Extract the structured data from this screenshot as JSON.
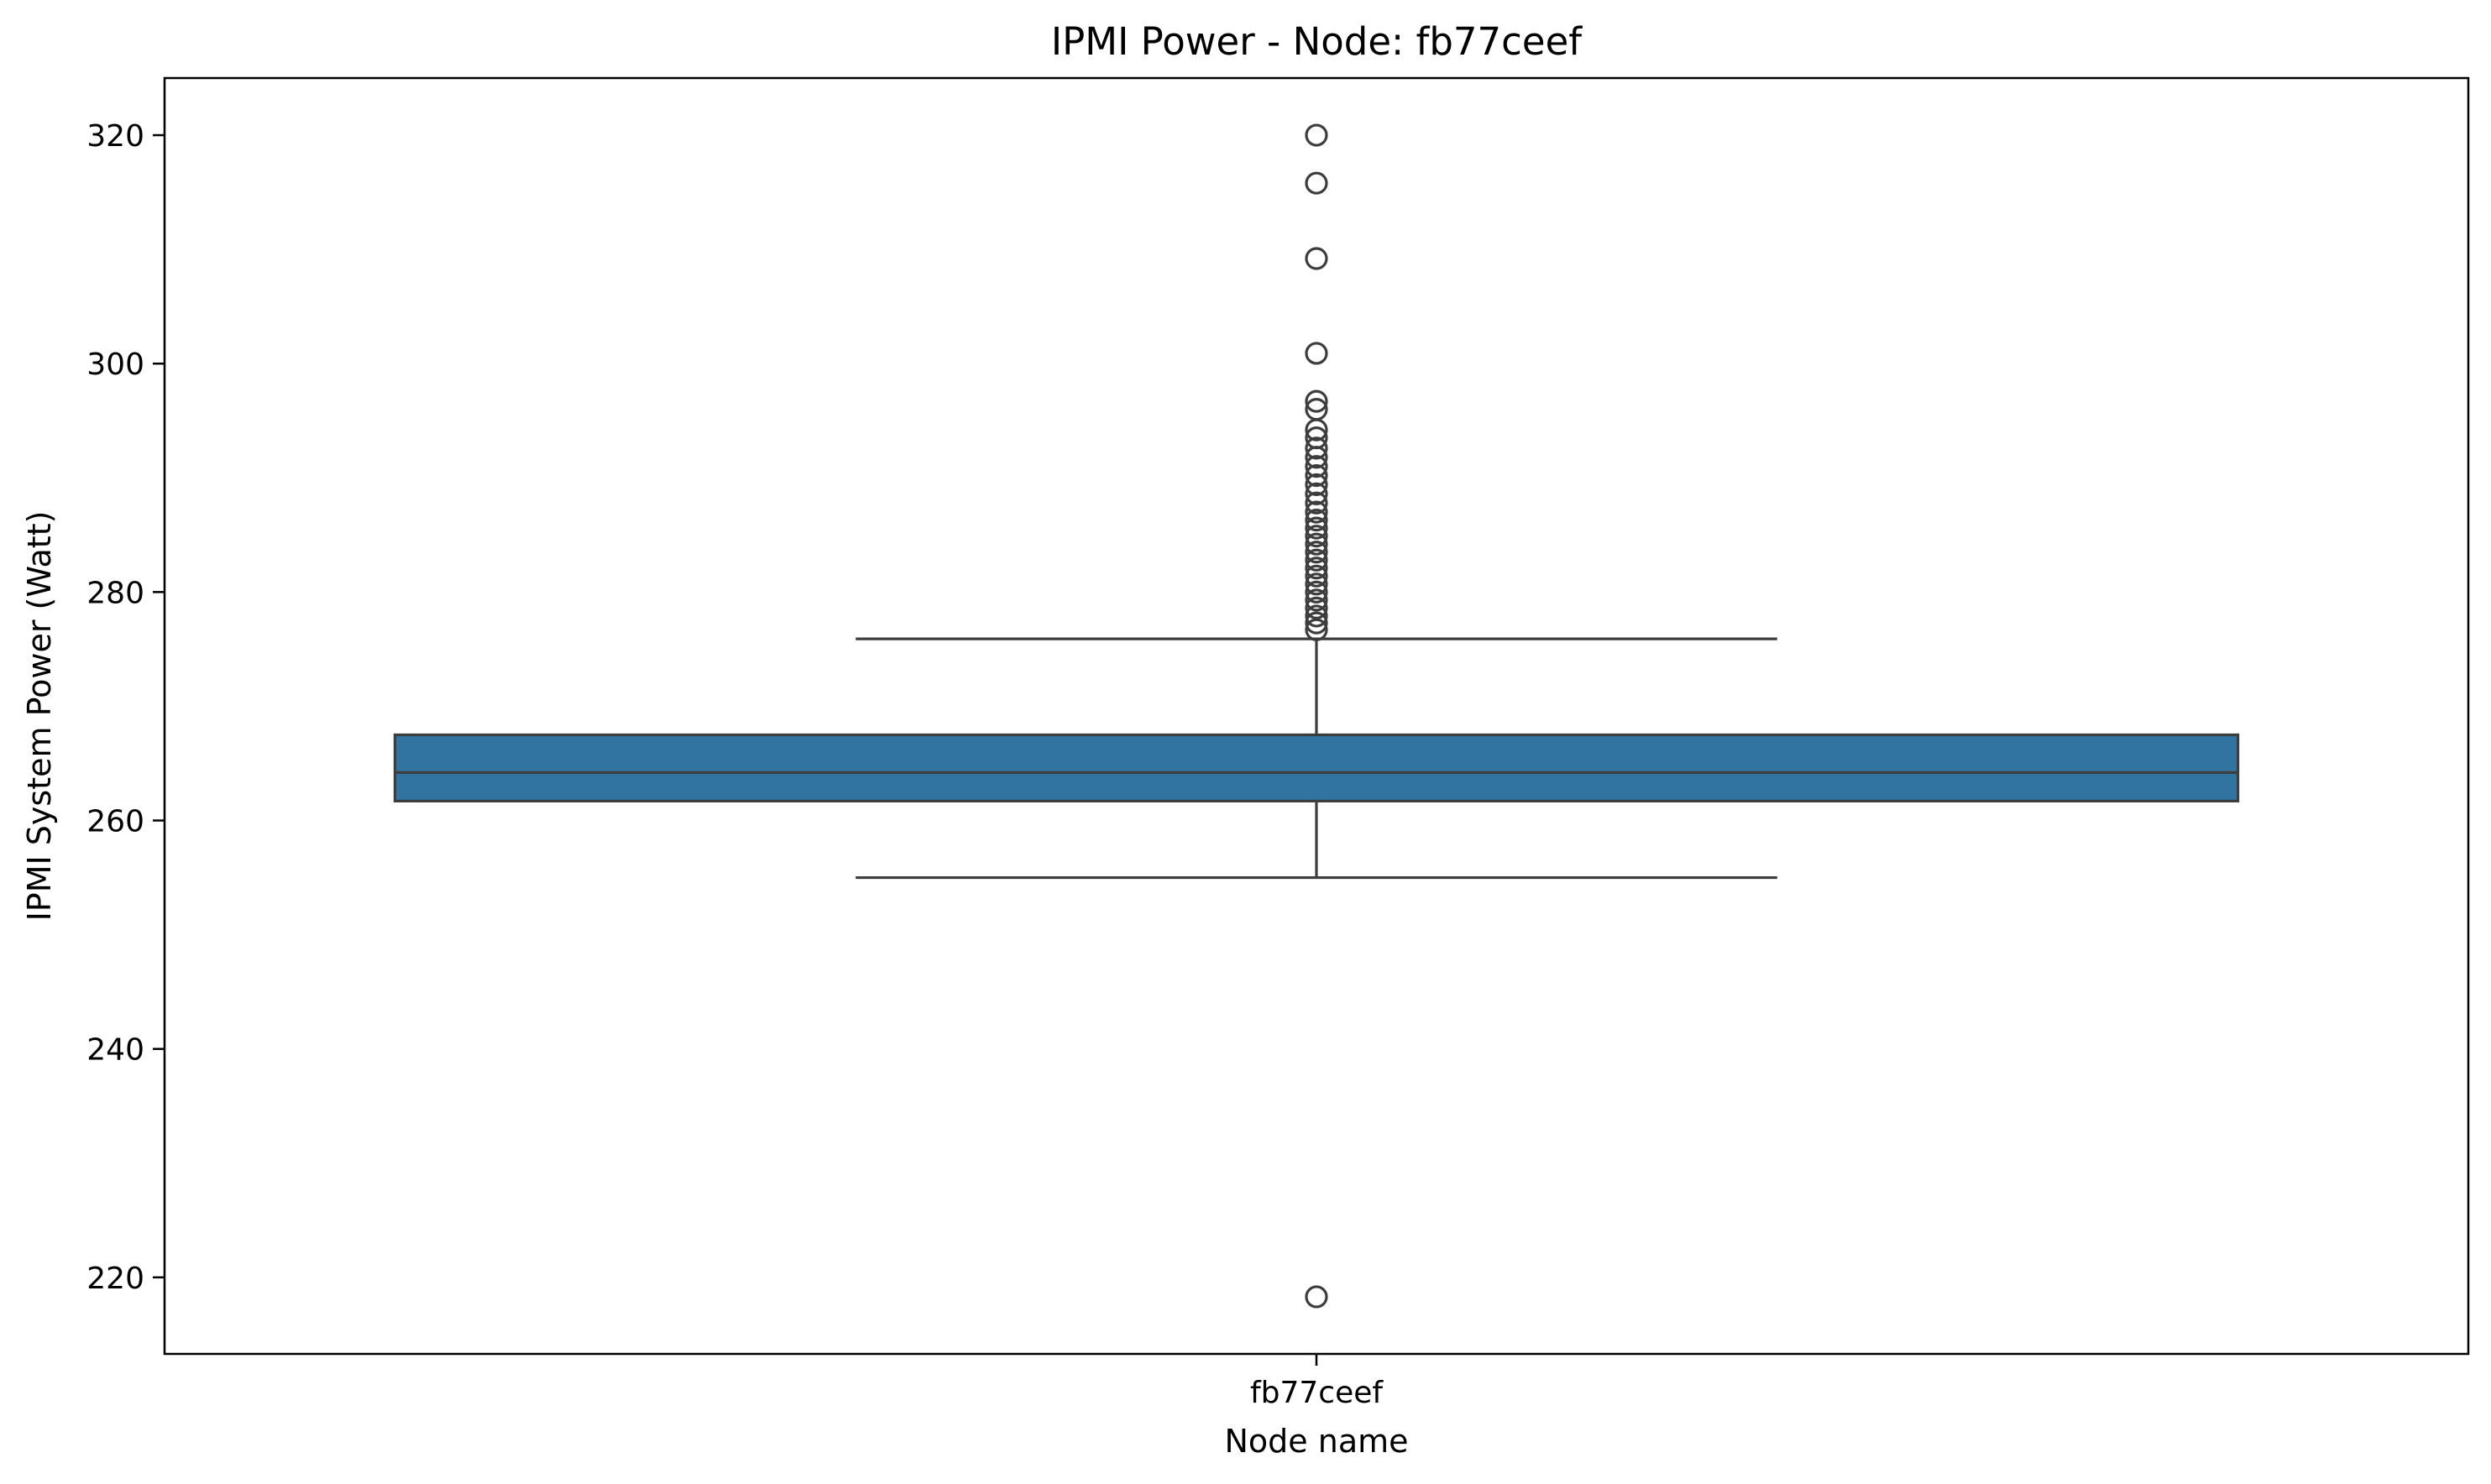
{
  "chart_data": {
    "type": "box",
    "title": "IPMI Power - Node: fb77ceef",
    "xlabel": "Node name",
    "ylabel": "IPMI System Power (Watt)",
    "ylim": [
      213.3,
      325.0
    ],
    "yticks": [
      220,
      240,
      260,
      280,
      300,
      320
    ],
    "grid": false,
    "categories": [
      "fb77ceef"
    ],
    "boxes": [
      {
        "category": "fb77ceef",
        "whisker_low": 255.0,
        "q1": 261.7,
        "median": 264.2,
        "q3": 267.5,
        "whisker_high": 275.9,
        "outliers": [
          218.3,
          276.7,
          277.3,
          277.9,
          278.6,
          279.3,
          280.0,
          280.7,
          281.4,
          282.1,
          282.8,
          283.5,
          284.2,
          284.9,
          285.6,
          286.3,
          287.0,
          287.8,
          288.6,
          289.4,
          290.2,
          291.0,
          291.8,
          292.6,
          293.5,
          294.2,
          296.0,
          296.7,
          300.9,
          309.2,
          315.8,
          320.0
        ]
      }
    ],
    "colors": {
      "box_fill": "#3274a1",
      "line": "#3d3d3d",
      "axes": "#000000"
    }
  }
}
